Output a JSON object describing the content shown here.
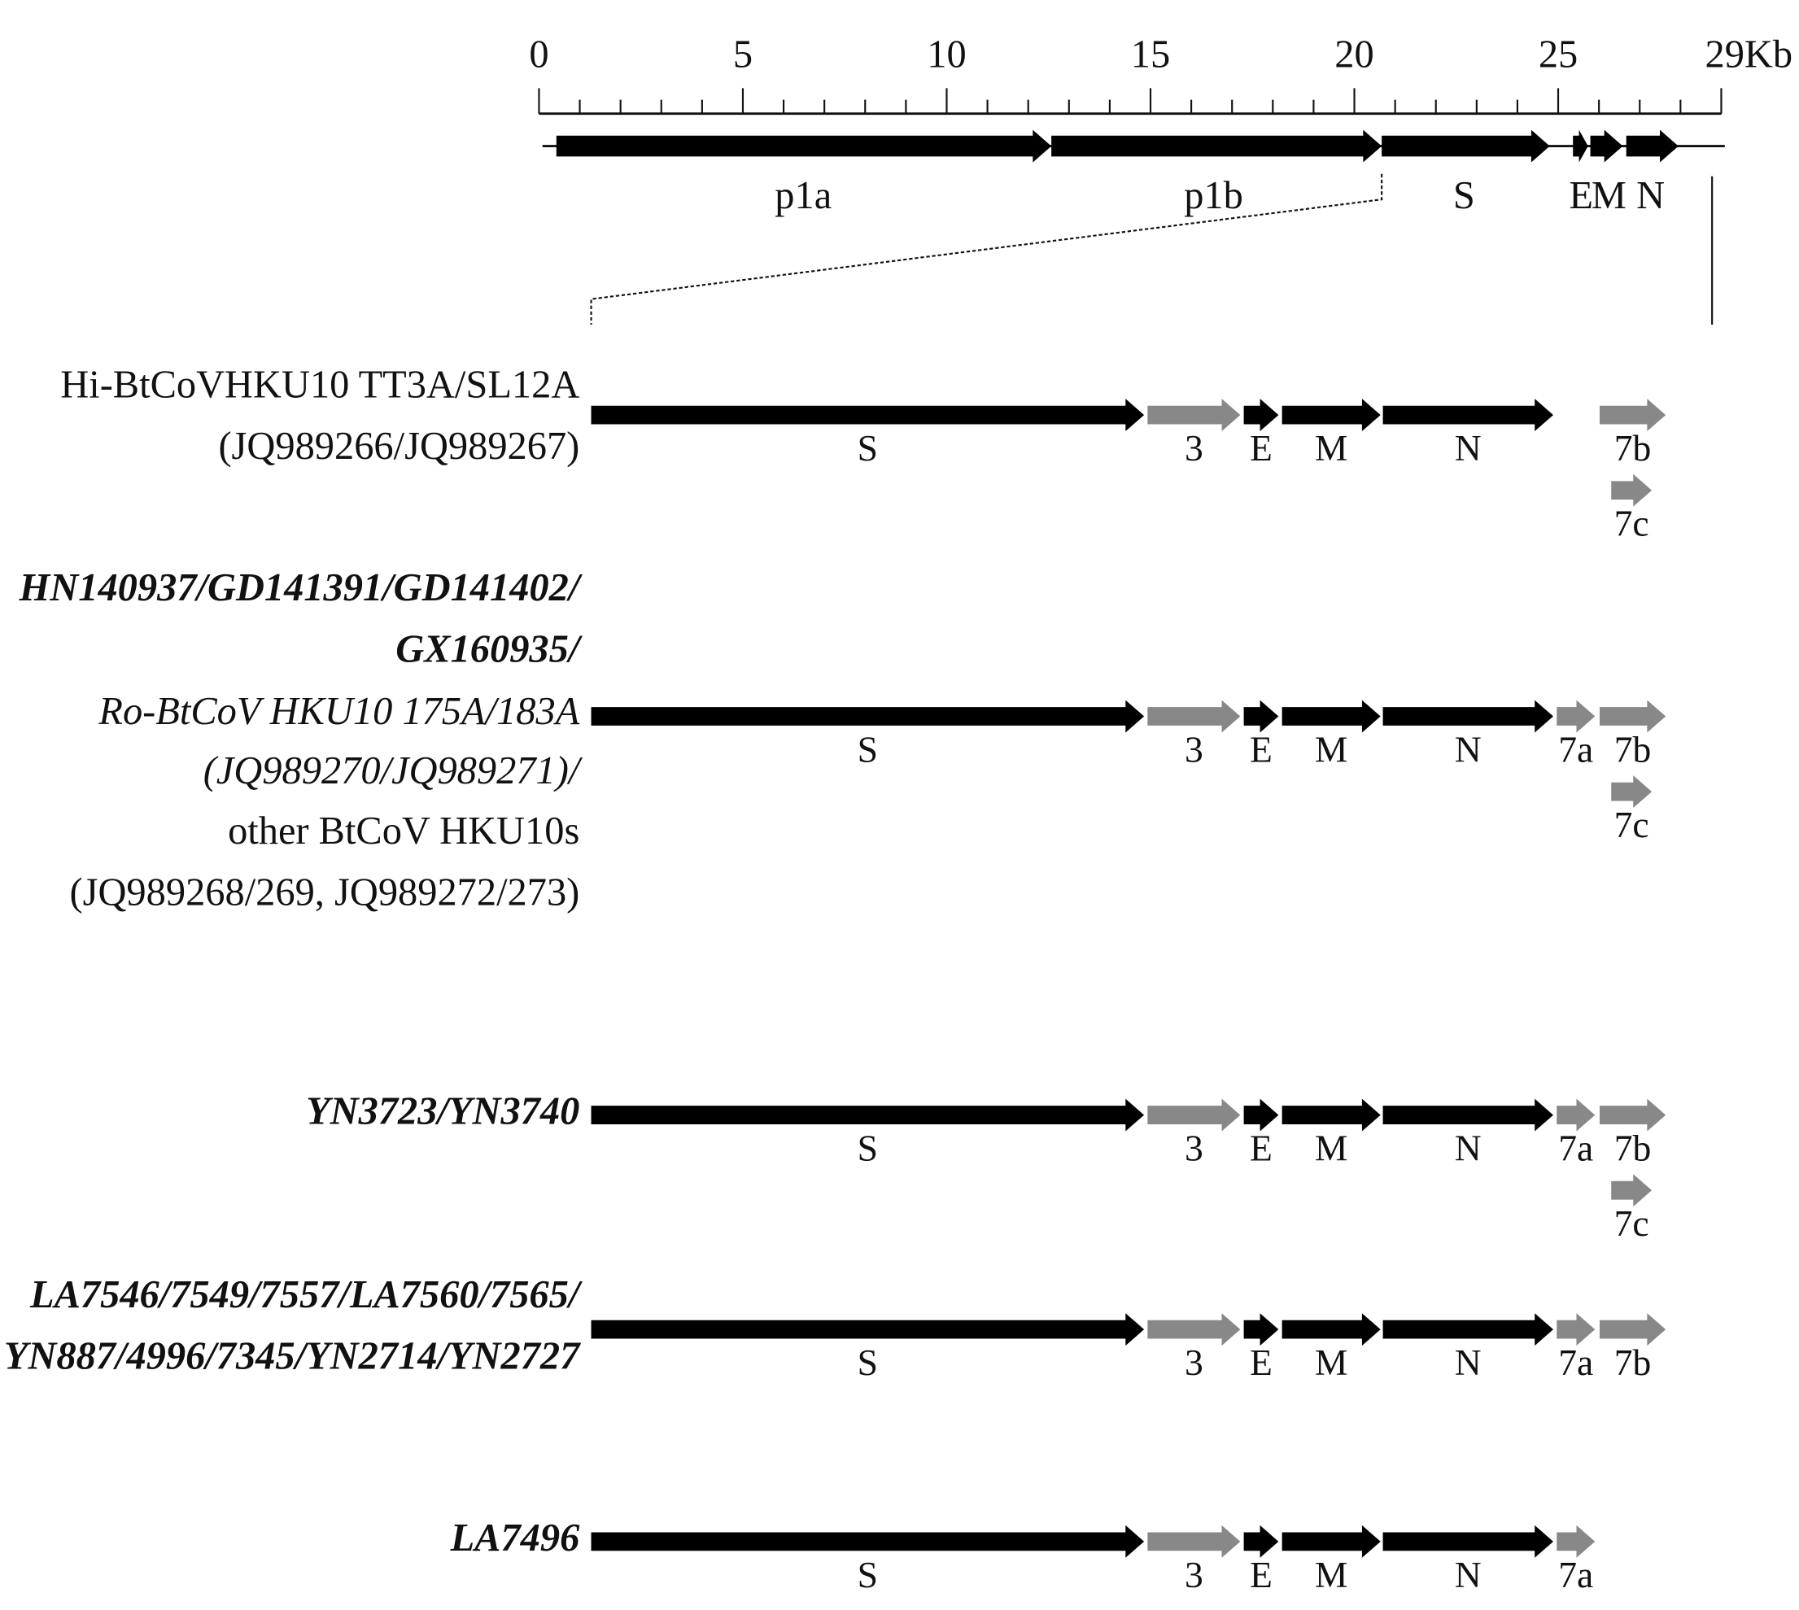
{
  "scale": {
    "labels": [
      "0",
      "5",
      "10",
      "15",
      "20",
      "25",
      "29Kb"
    ]
  },
  "genome": {
    "genes": [
      "p1a",
      "p1b",
      "S",
      "E",
      "M",
      "N"
    ]
  },
  "rows": [
    {
      "label": [
        "Hi-BtCoVHKU10 TT3A/SL12A",
        "(JQ989266/JQ989267)"
      ],
      "genes": [
        "S",
        "3",
        "E",
        "M",
        "N",
        "7b",
        "7c"
      ]
    },
    {
      "label": [
        "HN140937/GD141391/GD141402/",
        "GX160935/",
        "Ro-BtCoV HKU10 175A/183A",
        "(JQ989270/JQ989271)/",
        "other BtCoV HKU10s",
        "(JQ989268/269, JQ989272/273)"
      ],
      "genes": [
        "S",
        "3",
        "E",
        "M",
        "N",
        "7a",
        "7b",
        "7c"
      ]
    },
    {
      "label": [
        "YN3723/YN3740"
      ],
      "genes": [
        "S",
        "3",
        "E",
        "M",
        "N",
        "7a",
        "7b",
        "7c"
      ]
    },
    {
      "label": [
        "LA7546/7549/7557/LA7560/7565/",
        "YN887/4996/7345/YN2714/YN2727"
      ],
      "genes": [
        "S",
        "3",
        "E",
        "M",
        "N",
        "7a",
        "7b"
      ]
    },
    {
      "label": [
        "LA7496"
      ],
      "genes": [
        "S",
        "3",
        "E",
        "M",
        "N",
        "7a"
      ]
    }
  ]
}
